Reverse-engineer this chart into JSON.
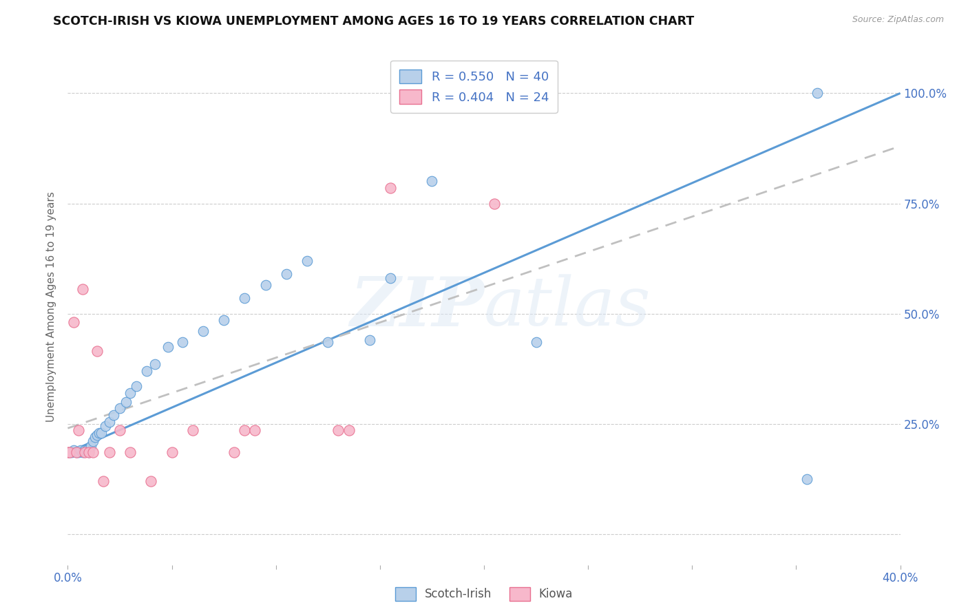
{
  "title": "SCOTCH-IRISH VS KIOWA UNEMPLOYMENT AMONG AGES 16 TO 19 YEARS CORRELATION CHART",
  "source": "Source: ZipAtlas.com",
  "ylabel": "Unemployment Among Ages 16 to 19 years",
  "xlim": [
    0.0,
    0.4
  ],
  "ylim": [
    -0.07,
    1.1
  ],
  "scotch_irish_R": 0.55,
  "scotch_irish_N": 40,
  "kiowa_R": 0.404,
  "kiowa_N": 24,
  "scotch_irish_color": "#b8d0ea",
  "kiowa_color": "#f7b8cb",
  "scotch_irish_line_color": "#5b9bd5",
  "kiowa_line_color": "#c0c0c0",
  "legend_text_color": "#4472c4",
  "watermark": "ZIPatlas",
  "si_x": [
    0.001,
    0.002,
    0.003,
    0.004,
    0.005,
    0.006,
    0.007,
    0.008,
    0.009,
    0.01,
    0.011,
    0.012,
    0.013,
    0.014,
    0.015,
    0.016,
    0.018,
    0.02,
    0.022,
    0.025,
    0.028,
    0.03,
    0.033,
    0.038,
    0.042,
    0.048,
    0.055,
    0.065,
    0.075,
    0.085,
    0.095,
    0.105,
    0.115,
    0.125,
    0.145,
    0.155,
    0.175,
    0.225,
    0.355,
    0.36
  ],
  "si_y": [
    0.185,
    0.185,
    0.19,
    0.185,
    0.185,
    0.19,
    0.185,
    0.19,
    0.19,
    0.185,
    0.2,
    0.21,
    0.22,
    0.225,
    0.23,
    0.23,
    0.245,
    0.255,
    0.27,
    0.285,
    0.3,
    0.32,
    0.335,
    0.37,
    0.385,
    0.425,
    0.435,
    0.46,
    0.485,
    0.535,
    0.565,
    0.59,
    0.62,
    0.435,
    0.44,
    0.58,
    0.8,
    0.435,
    0.125,
    1.0
  ],
  "ki_x": [
    0.0,
    0.001,
    0.003,
    0.004,
    0.005,
    0.007,
    0.008,
    0.01,
    0.012,
    0.014,
    0.017,
    0.02,
    0.025,
    0.03,
    0.04,
    0.05,
    0.06,
    0.08,
    0.085,
    0.09,
    0.13,
    0.135,
    0.155,
    0.205
  ],
  "ki_y": [
    0.185,
    0.185,
    0.48,
    0.185,
    0.235,
    0.555,
    0.185,
    0.185,
    0.185,
    0.415,
    0.12,
    0.185,
    0.235,
    0.185,
    0.12,
    0.185,
    0.235,
    0.185,
    0.235,
    0.235,
    0.235,
    0.235,
    0.785,
    0.75
  ]
}
